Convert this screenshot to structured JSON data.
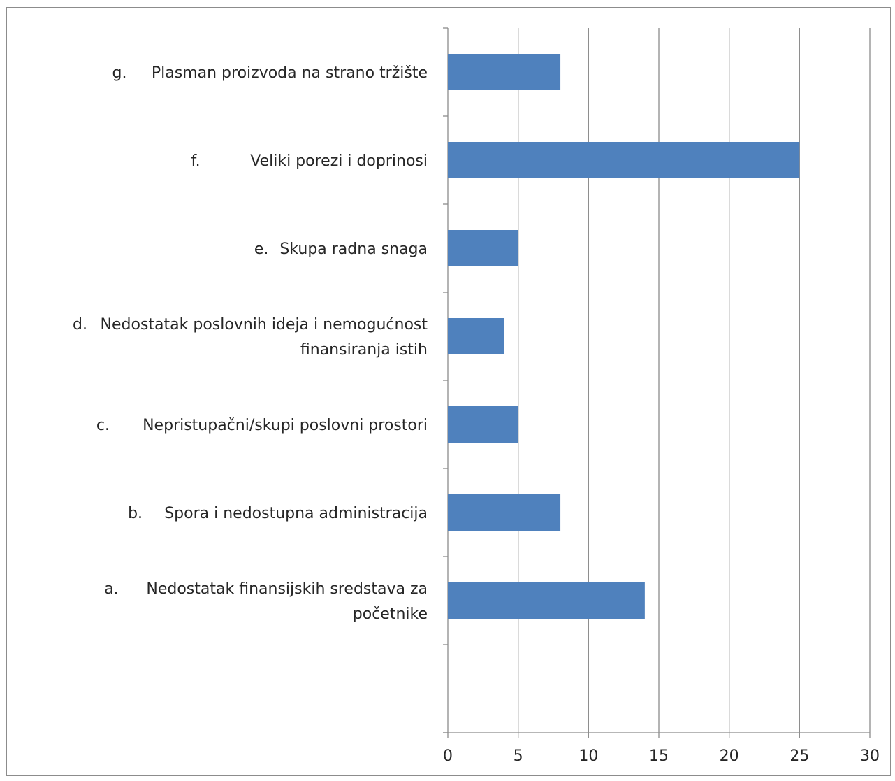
{
  "chart_data": {
    "type": "bar",
    "orientation": "horizontal",
    "title": "",
    "xlabel": "",
    "ylabel": "",
    "xlim": [
      0,
      30
    ],
    "x_ticks": [
      0,
      5,
      10,
      15,
      20,
      25,
      30
    ],
    "grid": "vertical",
    "legend": "none",
    "bar_color": "#4f81bd",
    "categories": [
      {
        "letter": "a.",
        "lines": [
          "Nedostatak finansijskih sredstava za",
          "početnike"
        ]
      },
      {
        "letter": "b.",
        "lines": [
          "Spora i nedostupna administracija"
        ]
      },
      {
        "letter": "c.",
        "lines": [
          "Nepristupačni/skupi poslovni prostori"
        ]
      },
      {
        "letter": "d.",
        "lines": [
          "Nedostatak poslovnih ideja i nemogućnost",
          "finansiranja istih"
        ]
      },
      {
        "letter": "e.",
        "lines": [
          "Skupa radna snaga"
        ]
      },
      {
        "letter": "f.",
        "lines": [
          "Veliki porezi i doprinosi"
        ]
      },
      {
        "letter": "g.",
        "lines": [
          "Plasman proizvoda na strano tržište"
        ]
      }
    ],
    "values": [
      14,
      8,
      5,
      4,
      5,
      25,
      8
    ]
  }
}
